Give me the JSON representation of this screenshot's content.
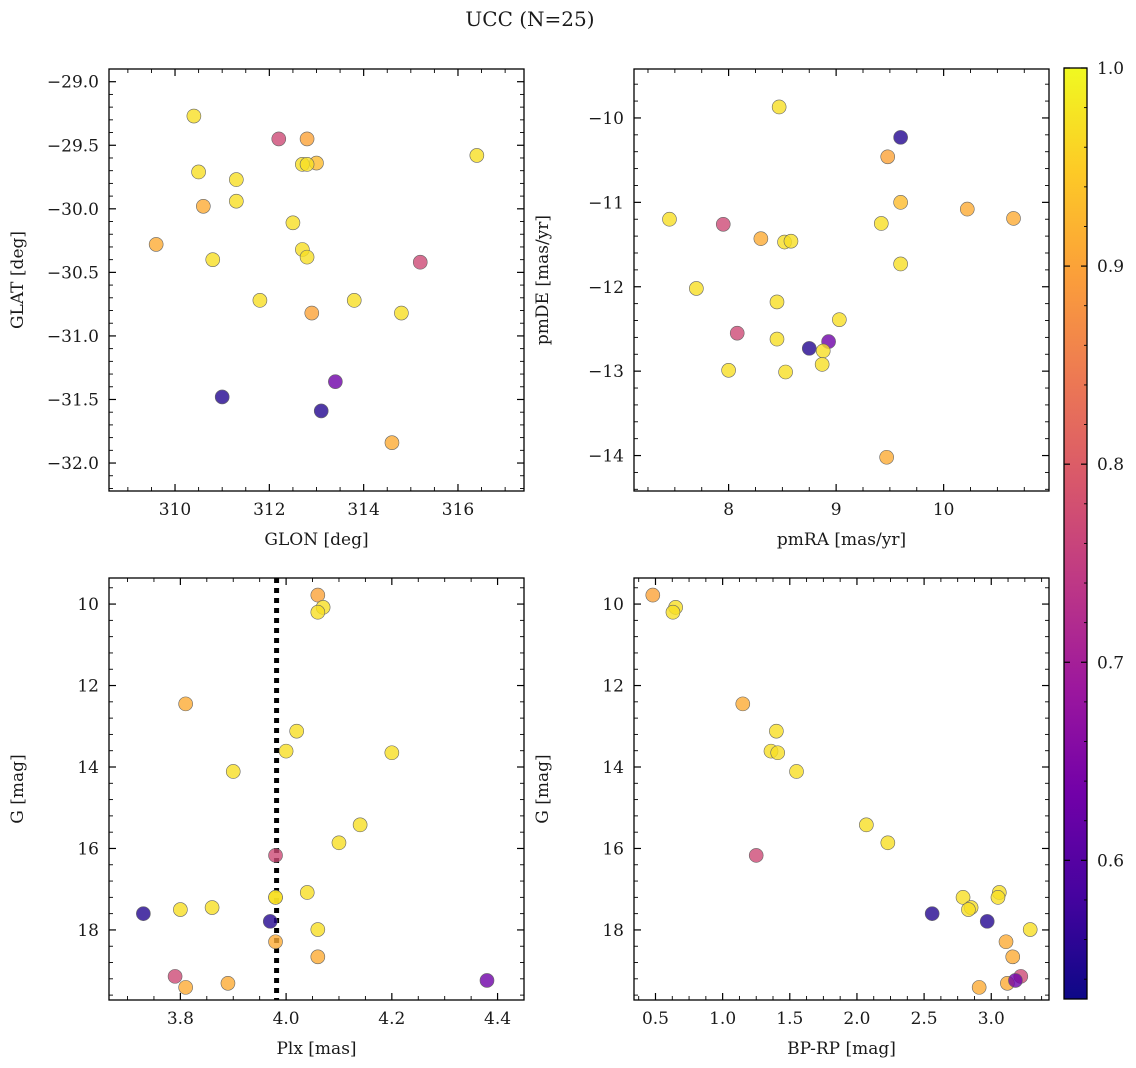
{
  "title": "UCC (N=25)",
  "colormap": [
    "#0d0887",
    "#46039f",
    "#7201a8",
    "#9c179e",
    "#bd3786",
    "#d8576b",
    "#ed7953",
    "#fb9f3a",
    "#fdca26",
    "#f0f921"
  ],
  "point_alpha": 0.8,
  "colorbar": {
    "min": 0.53,
    "max": 1.0,
    "ticks": [
      "0.6",
      "0.7",
      "0.8",
      "0.9",
      "1.0"
    ]
  },
  "chart_data": [
    {
      "type": "scatter",
      "id": "glon-glat",
      "xlabel": "GLON [deg]",
      "ylabel": "GLAT [deg]",
      "xlim": [
        308.6,
        317.4
      ],
      "ylim": [
        -32.22,
        -28.9
      ],
      "y_inverted": false,
      "xticks": [
        "310",
        "312",
        "314",
        "316"
      ],
      "yticks": [
        "−29.0",
        "−29.5",
        "−30.0",
        "−30.5",
        "−31.0",
        "−31.5",
        "−32.0"
      ],
      "x": [
        310.4,
        312.2,
        312.8,
        313.0,
        312.7,
        316.4,
        310.5,
        311.3,
        310.6,
        311.3,
        312.5,
        309.6,
        312.7,
        310.8,
        312.8,
        315.2,
        311.8,
        313.8,
        312.9,
        314.8,
        313.4,
        311.0,
        313.1,
        314.6,
        312.8
      ],
      "y": [
        -29.27,
        -29.45,
        -29.45,
        -29.64,
        -29.65,
        -29.58,
        -29.71,
        -29.77,
        -29.98,
        -29.94,
        -30.11,
        -30.28,
        -30.32,
        -30.4,
        -30.38,
        -30.42,
        -30.72,
        -30.72,
        -30.82,
        -30.82,
        -31.36,
        -31.48,
        -31.59,
        -31.84,
        -29.65
      ],
      "c": [
        0.97,
        0.77,
        0.9,
        0.93,
        0.97,
        0.97,
        0.97,
        0.97,
        0.91,
        0.97,
        0.97,
        0.91,
        0.97,
        0.97,
        0.97,
        0.77,
        0.97,
        0.97,
        0.9,
        0.97,
        0.63,
        0.55,
        0.55,
        0.91,
        0.97
      ]
    },
    {
      "type": "scatter",
      "id": "pmra-pmde",
      "xlabel": "pmRA [mas/yr]",
      "ylabel": "pmDE [mas/yr]",
      "xlim": [
        7.12,
        10.98
      ],
      "ylim": [
        -14.42,
        -9.42
      ],
      "y_inverted": false,
      "xticks": [
        "8",
        "9",
        "10"
      ],
      "yticks": [
        "−10",
        "−11",
        "−12",
        "−13",
        "−14"
      ],
      "x": [
        8.47,
        9.6,
        9.48,
        9.6,
        7.45,
        7.95,
        10.22,
        10.65,
        8.3,
        8.52,
        8.58,
        9.42,
        9.6,
        7.7,
        8.45,
        9.03,
        8.08,
        8.45,
        8.93,
        8.75,
        8.88,
        8.0,
        8.53,
        8.87,
        9.47
      ],
      "y": [
        -9.87,
        -10.23,
        -10.46,
        -11.0,
        -11.2,
        -11.26,
        -11.08,
        -11.19,
        -11.43,
        -11.47,
        -11.46,
        -11.25,
        -11.73,
        -12.02,
        -12.18,
        -12.39,
        -12.55,
        -12.62,
        -12.65,
        -12.73,
        -12.76,
        -12.99,
        -13.01,
        -12.92,
        -14.02
      ],
      "c": [
        0.97,
        0.55,
        0.9,
        0.93,
        0.97,
        0.77,
        0.91,
        0.91,
        0.91,
        0.97,
        0.97,
        0.97,
        0.97,
        0.97,
        0.97,
        0.97,
        0.77,
        0.97,
        0.63,
        0.55,
        0.97,
        0.97,
        0.97,
        0.97,
        0.91
      ]
    },
    {
      "type": "scatter",
      "id": "plx-g",
      "xlabel": "Plx [mas]",
      "ylabel": "G [mag]",
      "xlim": [
        3.665,
        4.45
      ],
      "ylim": [
        19.72,
        9.36
      ],
      "y_inverted": true,
      "xticks": [
        "3.8",
        "4.0",
        "4.2",
        "4.4"
      ],
      "yticks": [
        "10",
        "12",
        "14",
        "16",
        "18"
      ],
      "vline": {
        "x": 3.982,
        "style": "dotted"
      },
      "x": [
        4.06,
        4.07,
        4.06,
        3.81,
        4.02,
        4.0,
        4.2,
        3.9,
        4.14,
        4.1,
        3.98,
        3.73,
        3.8,
        3.86,
        3.98,
        4.04,
        3.97,
        4.06,
        3.98,
        4.06,
        3.79,
        3.81,
        3.89,
        4.38,
        3.98
      ],
      "y": [
        9.78,
        10.08,
        10.2,
        12.45,
        13.12,
        13.61,
        13.65,
        14.11,
        15.42,
        15.86,
        16.17,
        17.6,
        17.5,
        17.45,
        17.2,
        17.08,
        17.79,
        17.99,
        18.29,
        18.66,
        19.14,
        19.41,
        19.31,
        19.24,
        17.2
      ],
      "c": [
        0.9,
        0.97,
        0.97,
        0.91,
        0.97,
        0.97,
        0.97,
        0.97,
        0.97,
        0.97,
        0.77,
        0.55,
        0.97,
        0.97,
        0.97,
        0.97,
        0.55,
        0.97,
        0.91,
        0.91,
        0.77,
        0.91,
        0.91,
        0.63,
        0.97
      ]
    },
    {
      "type": "scatter",
      "id": "bprp-g",
      "xlabel": "BP-RP [mag]",
      "ylabel": "G [mag]",
      "xlim": [
        0.34,
        3.43
      ],
      "ylim": [
        19.72,
        9.36
      ],
      "y_inverted": true,
      "xticks": [
        "0.5",
        "1.0",
        "1.5",
        "2.0",
        "2.5",
        "3.0"
      ],
      "yticks": [
        "10",
        "12",
        "14",
        "16",
        "18"
      ],
      "x": [
        0.48,
        0.65,
        0.63,
        1.15,
        1.4,
        1.36,
        1.41,
        1.55,
        2.07,
        2.23,
        1.25,
        2.56,
        2.79,
        2.85,
        3.06,
        3.05,
        2.97,
        3.29,
        3.11,
        3.16,
        3.22,
        2.91,
        3.12,
        3.18,
        2.83
      ],
      "y": [
        9.78,
        10.08,
        10.2,
        12.45,
        13.12,
        13.61,
        13.65,
        14.11,
        15.42,
        15.86,
        16.17,
        17.6,
        17.2,
        17.45,
        17.08,
        17.2,
        17.79,
        17.99,
        18.29,
        18.66,
        19.14,
        19.41,
        19.31,
        19.24,
        17.5
      ],
      "c": [
        0.9,
        0.97,
        0.97,
        0.91,
        0.97,
        0.97,
        0.97,
        0.97,
        0.97,
        0.97,
        0.77,
        0.55,
        0.97,
        0.97,
        0.97,
        0.97,
        0.55,
        0.97,
        0.91,
        0.91,
        0.77,
        0.91,
        0.91,
        0.63,
        0.97
      ]
    }
  ]
}
